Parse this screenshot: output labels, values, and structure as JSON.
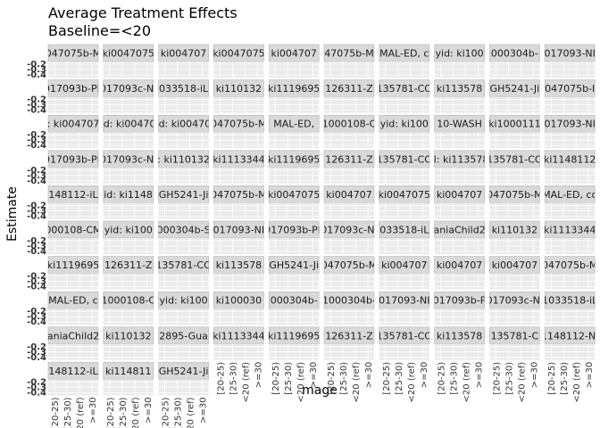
{
  "chart_data": {
    "type": "scatter",
    "title": "Average Treatment Effects",
    "subtitle": "Baseline=<20",
    "xlabel": "mage",
    "ylabel": "Estimate",
    "x_categories": [
      "[20-25)",
      "[25-30)",
      "<20 (ref)",
      ">=30"
    ],
    "y_tick_labels": [
      "-0.2",
      "-0.3",
      "-0.4"
    ],
    "grid": true,
    "panel_background": "#ebebeb",
    "strip_background": "#d9d9d9",
    "facet_columns": 10,
    "facets": [
      "047075b-M",
      "ki0047075",
      "ki004707",
      "ki0047075",
      "ki004707",
      "47075b-M",
      "MAL-ED, c",
      "yid: ki100",
      "000304b-",
      "017093-NI",
      "017093b-PF",
      "017093c-NI",
      "033518-iL",
      "ki110132",
      "ki1119695",
      "126311-Z",
      "135781-CO",
      "ki113578",
      "GH5241-Ji",
      "047075b-I",
      ": ki004707",
      "yid: ki004707",
      "yid: ki004707",
      "047075b-M",
      "MAL-ED, ",
      "1000108-C",
      "yid: ki100",
      "10-WASH",
      "ki1000111",
      "017093-NI",
      "017093b-PF",
      "017093c-NI",
      ": ki110132",
      "ki1113344",
      "ki1119695",
      "126311-Z",
      "135781-CO",
      "d: ki113578",
      "135781-CO",
      "ki1148112",
      "148112-iL",
      "yid: ki11481",
      "GH5241-Ji",
      "047075b-M",
      "ki0047075",
      "ki004707",
      "ki0047075",
      "ki004707",
      "047075b-M",
      "MAL-ED, co",
      "000108-CM",
      "yid: ki100",
      "000304b-S",
      "017093-NI",
      "017093b-PF",
      "017093c-NI",
      "033518-iL",
      "aniaChild2",
      "ki110132",
      "ki1113344",
      "ki1119695",
      "126311-Z",
      "135781-CO",
      "ki113578",
      "GH5241-Ji",
      "047075b-M",
      "ki004707",
      "ki004707",
      "ki004707",
      "047075b-M",
      "MAL-ED, c",
      "1000108-C",
      "yid: ki100",
      "ki100030",
      "000304b-",
      "1000304b-",
      "017093-NI",
      "017093b-P",
      "017093c-NI",
      "1033518-iL",
      "aniaChild2",
      "ki110132",
      "2895-Gua",
      "ki1113344",
      "ki1119695",
      "126311-Z",
      "135781-CO",
      "ki113578",
      "135781-C",
      "1148112-Ni",
      "148112-iL",
      "ki114811",
      "GH5241-Ji"
    ]
  }
}
